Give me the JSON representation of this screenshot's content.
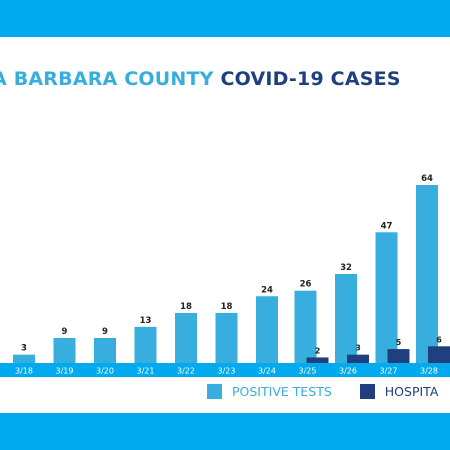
{
  "title": {
    "part1": "A BARBARA COUNTY",
    "part2": "COVID-19 CASES"
  },
  "colors": {
    "background": "#00aaee",
    "positive": "#37aede",
    "hospitalized": "#1f3f7e",
    "axis_text": "#ffffff",
    "label_text": "#222222"
  },
  "legend": {
    "position": "bottom-right",
    "positive_label": "POSITIVE TESTS",
    "hospitalized_label": "HOSPITA"
  },
  "chart_data": {
    "type": "bar",
    "title": "A BARBARA COUNTY COVID-19 CASES",
    "xlabel": "",
    "ylabel": "",
    "ylim": [
      0,
      70
    ],
    "grid": false,
    "categories": [
      "3/18",
      "3/19",
      "3/20",
      "3/21",
      "3/22",
      "3/23",
      "3/24",
      "3/25",
      "3/26",
      "3/27",
      "3/28"
    ],
    "series": [
      {
        "name": "POSITIVE TESTS",
        "values": [
          3,
          9,
          9,
          13,
          18,
          18,
          24,
          26,
          32,
          47,
          64
        ]
      },
      {
        "name": "HOSPITA",
        "values": [
          null,
          null,
          null,
          null,
          null,
          null,
          null,
          2,
          3,
          5,
          6
        ]
      }
    ]
  }
}
